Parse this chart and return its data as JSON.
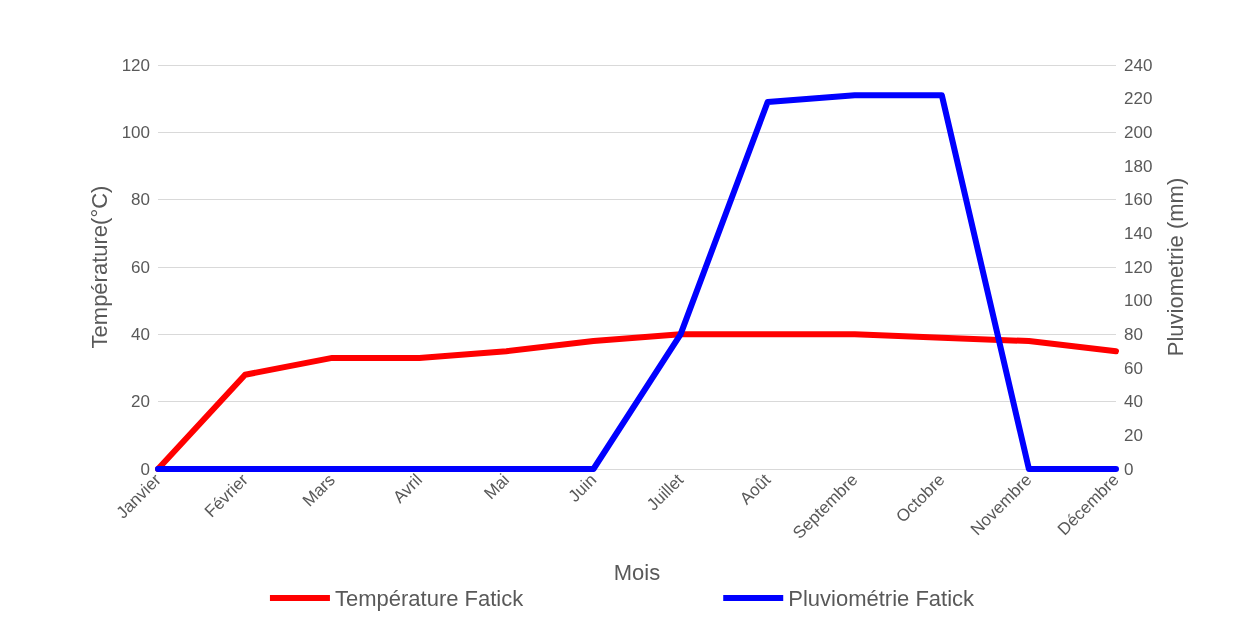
{
  "chart_data": {
    "type": "line",
    "xlabel": "Mois",
    "ylabel": "Température(°C)",
    "y2label": "Pluviometrie (mm)",
    "categories": [
      "Janvier",
      "Février",
      "Mars",
      "Avril",
      "Mai",
      "Juin",
      "Juillet",
      "Août",
      "Septembre",
      "Octobre",
      "Novembre",
      "Décembre"
    ],
    "series": [
      {
        "name": "Température Fatick",
        "color": "#ff0000",
        "values": [
          0,
          28,
          33,
          33,
          35,
          38,
          40,
          40,
          40,
          39,
          38,
          35
        ]
      },
      {
        "name": "Pluviométrie Fatick",
        "color": "#0000ff",
        "axis": "y2",
        "values": [
          0,
          0,
          0,
          0,
          0,
          0,
          80,
          218,
          222,
          222,
          0,
          0
        ]
      }
    ],
    "ylim": [
      0,
      120
    ],
    "yticks": [
      0,
      20,
      40,
      60,
      80,
      100,
      120
    ],
    "y2lim": [
      0,
      240
    ],
    "y2ticks": [
      0,
      20,
      40,
      60,
      80,
      100,
      120,
      140,
      160,
      180,
      200,
      220,
      240
    ],
    "grid": "y",
    "legend": "bottom",
    "marker": "none",
    "line_style": "solid"
  }
}
